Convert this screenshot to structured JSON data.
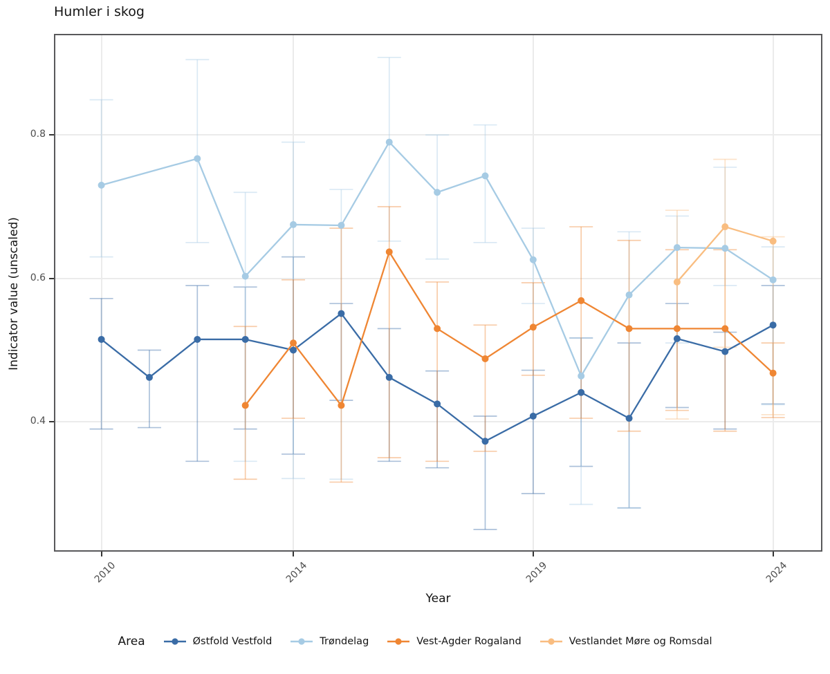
{
  "title": "Humler i skog",
  "x_axis": {
    "label": "Year",
    "ticks": [
      2010,
      2014,
      2019,
      2024
    ]
  },
  "y_axis": {
    "label": "Indicator value (unscaled)",
    "ticks": [
      0.4,
      0.6,
      0.8
    ]
  },
  "legend": {
    "title": "Area"
  },
  "colors": {
    "grid": "#ebebeb",
    "panel_border": "#58585a",
    "tick_text": "#4d4d4d",
    "axis_text": "#141414"
  },
  "chart_data": {
    "type": "line",
    "title": "Humler i skog",
    "xlabel": "Year",
    "ylabel": "Indicator value (unscaled)",
    "x": [
      2010,
      2011,
      2012,
      2013,
      2014,
      2015,
      2016,
      2017,
      2018,
      2019,
      2020,
      2021,
      2022,
      2023,
      2024
    ],
    "xlim": [
      2009.04,
      2025.0
    ],
    "ylim": [
      0.221,
      0.939
    ],
    "grid": true,
    "legend_position": "bottom",
    "error_bars": true,
    "series": [
      {
        "name": "Østfold Vestfold",
        "color": "#3a6ca6",
        "values": [
          0.515,
          0.462,
          0.515,
          0.515,
          0.5,
          0.551,
          0.462,
          0.425,
          0.373,
          0.408,
          0.441,
          0.405,
          0.516,
          0.498,
          0.535
        ],
        "ci_low": [
          0.39,
          0.392,
          0.345,
          0.39,
          0.355,
          0.43,
          0.345,
          0.336,
          0.25,
          0.3,
          0.338,
          0.28,
          0.42,
          0.39,
          0.425
        ],
        "ci_high": [
          0.572,
          0.5,
          0.59,
          0.588,
          0.63,
          0.565,
          0.53,
          0.471,
          0.408,
          0.472,
          0.517,
          0.51,
          0.565,
          0.525,
          0.59
        ]
      },
      {
        "name": "Trøndelag",
        "color": "#a6cbe4",
        "values": [
          0.73,
          null,
          0.767,
          0.603,
          0.675,
          0.674,
          0.79,
          0.72,
          0.743,
          0.626,
          0.464,
          0.577,
          0.643,
          0.642,
          0.598
        ],
        "ci_low": [
          0.63,
          null,
          0.65,
          0.345,
          0.321,
          0.32,
          0.652,
          0.627,
          0.65,
          0.565,
          0.285,
          0.28,
          0.51,
          0.59,
          0.424
        ],
        "ci_high": [
          0.849,
          null,
          0.905,
          0.72,
          0.79,
          0.724,
          0.908,
          0.8,
          0.814,
          0.67,
          0.517,
          0.665,
          0.687,
          0.755,
          0.644
        ]
      },
      {
        "name": "Vest-Agder Rogaland",
        "color": "#ef8633",
        "values": [
          null,
          null,
          null,
          0.423,
          0.51,
          0.423,
          0.637,
          0.53,
          0.488,
          0.532,
          0.569,
          0.53,
          0.53,
          0.53,
          0.468
        ],
        "ci_low": [
          null,
          null,
          null,
          0.32,
          0.405,
          0.316,
          0.35,
          0.345,
          0.359,
          0.465,
          0.405,
          0.387,
          0.416,
          0.387,
          0.406
        ],
        "ci_high": [
          null,
          null,
          null,
          0.533,
          0.598,
          0.67,
          0.7,
          0.595,
          0.535,
          0.594,
          0.672,
          0.653,
          0.64,
          0.64,
          0.51
        ]
      },
      {
        "name": "Vestlandet Møre og Romsdal",
        "color": "#f9bd80",
        "values": [
          null,
          null,
          null,
          null,
          null,
          null,
          null,
          null,
          null,
          null,
          null,
          null,
          0.595,
          0.672,
          0.652
        ],
        "ci_low": [
          null,
          null,
          null,
          null,
          null,
          null,
          null,
          null,
          null,
          null,
          null,
          null,
          0.404,
          0.504,
          0.41
        ],
        "ci_high": [
          null,
          null,
          null,
          null,
          null,
          null,
          null,
          null,
          null,
          null,
          null,
          null,
          0.695,
          0.766,
          0.658
        ]
      }
    ]
  }
}
